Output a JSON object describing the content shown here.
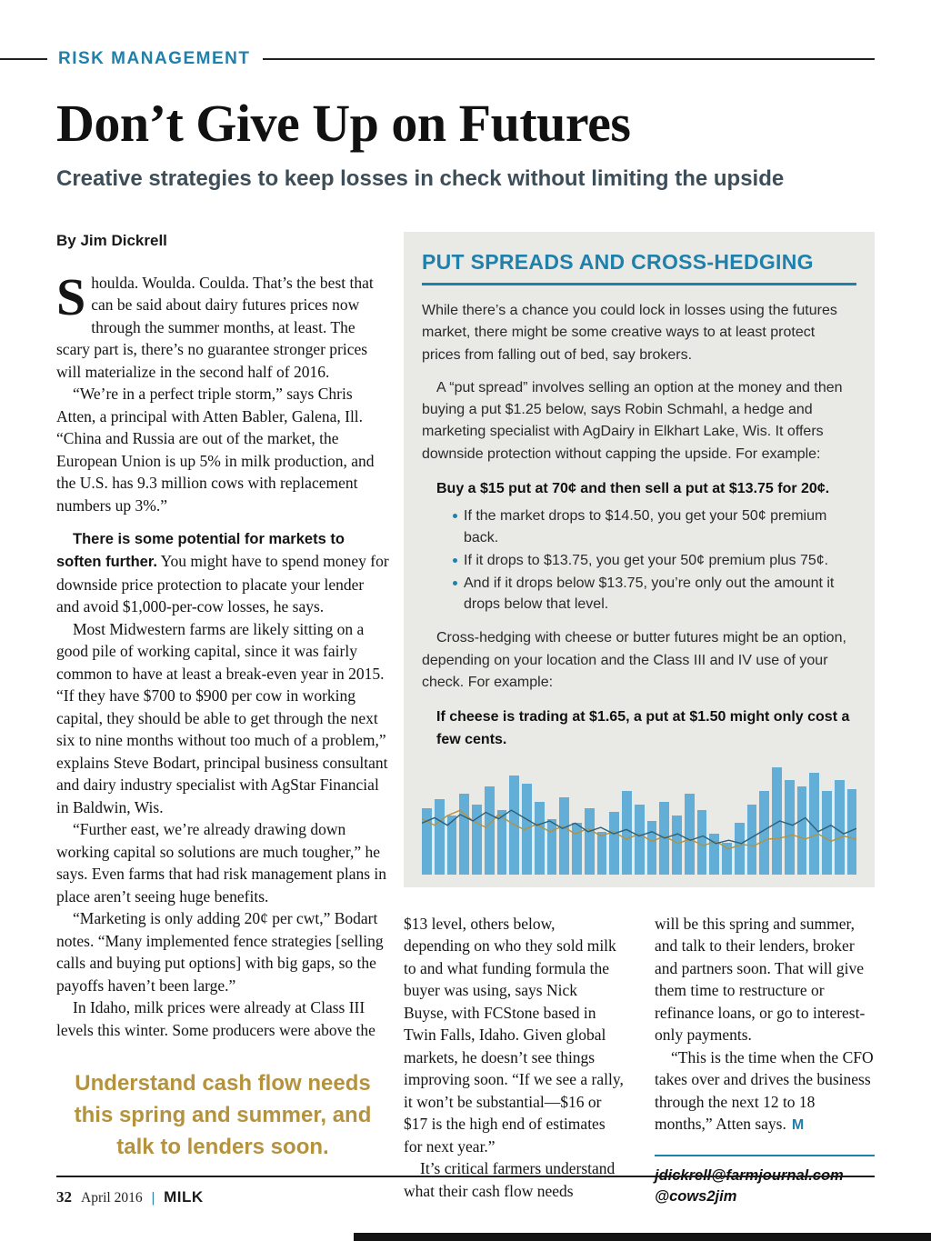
{
  "page": {
    "kicker": "RISK MANAGEMENT",
    "headline": "Don’t Give Up on Futures",
    "subhead": "Creative strategies to keep losses in check without limiting the upside",
    "byline": "By Jim Dickrell"
  },
  "article": {
    "dropcap": "S",
    "p1_rest": "houlda. Woulda. Coulda. That’s the best that can be said about dairy futures prices now through the summer months, at least. The scary part is, there’s no guarantee stronger prices will materialize in the second half of 2016.",
    "p2": "“We’re in a perfect triple storm,” says Chris Atten, a principal with Atten Babler, Galena, Ill. “China and Russia are out of the market, the European Union is up 5% in milk production, and the U.S. has 9.3 million cows with replacement numbers up 3%.”",
    "p3_bold": "There is some potential for markets to soften further.",
    "p3_rest": " You might have to spend money for downside price protection to placate your lender and avoid $1,000-per-cow losses, he says.",
    "p4": "Most Midwestern farms are likely sitting on a good pile of working capital, since it was fairly common to have at least a break-even year in 2015. “If they have $700 to $900 per cow in working capital, they should be able to get through the next six to nine months without too much of a problem,” explains Steve Bodart, principal business consultant and dairy industry specialist with AgStar Financial in Baldwin, Wis.",
    "p5": "“Further east, we’re already drawing down working capital so solutions are much tougher,” he says. Even farms that had risk management plans in place aren’t seeing huge benefits.",
    "p6": "“Marketing is only adding 20¢ per cwt,” Bodart notes. “Many implemented fence strategies [selling calls and buying put options] with big gaps, so the payoffs haven’t been large.”",
    "p7": "In Idaho, milk prices were already at Class III levels this winter. Some producers were above the",
    "pullquote": "Understand cash flow needs this spring and summer, and talk to lenders soon."
  },
  "sidebar": {
    "title": "PUT SPREADS AND CROSS-HEDGING",
    "p1": "While there’s a chance you could lock in losses using the futures market, there might be some creative ways to at least protect prices from falling out of bed, say brokers.",
    "p2": "A “put spread” involves selling an option at the money and then buying a put $1.25 below, says Robin Schmahl, a hedge and marketing specialist with AgDairy in Elkhart Lake, Wis. It offers downside protection without capping the upside. For example:",
    "callout1": "Buy a $15 put at 70¢ and then sell a put at $13.75 for 20¢.",
    "bullets": [
      "If the market drops to $14.50, you get your 50¢ premium back.",
      "If it drops to $13.75, you get your 50¢ premium plus 75¢.",
      "And if it drops below $13.75, you’re only out the amount it drops below that level."
    ],
    "p3": "Cross-hedging with cheese or butter futures might be an option, depending on your location and the Class III and IV use of your check. For example:",
    "callout2": "If cheese is trading at $1.65, a put at $1.50 might only cost a few cents."
  },
  "continuation": {
    "col1_p1": "$13 level, others below, depending on who they sold milk to and what funding formula the buyer was using, says Nick Buyse, with FCStone based in Twin Falls, Idaho. Given global markets, he doesn’t see things improving soon. “If we see a rally, it won’t be substantial—$16 or $17 is the high end of estimates for next year.”",
    "col1_p2": "It’s critical farmers understand what their cash flow needs",
    "col2_p1": "will be this spring and summer, and talk to their lenders, broker and partners soon. That will give them time to restructure or refinance loans, or go to interest-only payments.",
    "col2_p2": "“This is the time when the CFO takes over and drives the business through the next 12 to 18 months,” Atten says.",
    "end_mark": "M",
    "contact_email": "jdickrell@farmjournal.com",
    "contact_twitter": "@cows2jim"
  },
  "footer": {
    "page_number": "32",
    "issue": "April 2016",
    "separator": "|",
    "magazine": "MILK"
  },
  "colors": {
    "accent_teal": "#1f81ab",
    "gold": "#b5923e",
    "sidebar_bg": "#e9e9e6",
    "bar_blue": "#62aed6",
    "line_gold": "#b5923e",
    "line_dark": "#2e5f7a"
  },
  "chart_data": {
    "type": "bar",
    "title": "",
    "xlabel": "",
    "ylabel": "",
    "notes": "untitled futures price chart inside sidebar; no axis labels or tick marks visible; light-blue bars with two overlaid trend lines (gold and dark blue)",
    "bar_color": "#62aed6",
    "bar_values": [
      62,
      70,
      55,
      75,
      65,
      82,
      60,
      92,
      85,
      68,
      52,
      72,
      48,
      62,
      40,
      58,
      78,
      65,
      50,
      68,
      55,
      75,
      60,
      38,
      30,
      48,
      65,
      78,
      100,
      88,
      82,
      95,
      78,
      88,
      80
    ],
    "line_series": [
      {
        "name": "gold-line",
        "color": "#b5923e",
        "values": [
          52,
          46,
          55,
          60,
          50,
          44,
          56,
          48,
          42,
          47,
          40,
          45,
          38,
          43,
          36,
          40,
          33,
          38,
          31,
          36,
          29,
          33,
          27,
          31,
          24,
          28,
          27,
          33,
          34,
          37,
          33,
          38,
          31,
          36,
          33
        ]
      },
      {
        "name": "dark-line",
        "color": "#2e5f7a",
        "values": [
          48,
          53,
          46,
          56,
          50,
          58,
          52,
          60,
          53,
          46,
          50,
          43,
          48,
          40,
          44,
          38,
          42,
          36,
          40,
          34,
          38,
          32,
          36,
          29,
          32,
          29,
          36,
          43,
          50,
          46,
          53,
          40,
          46,
          38,
          43
        ]
      }
    ]
  }
}
